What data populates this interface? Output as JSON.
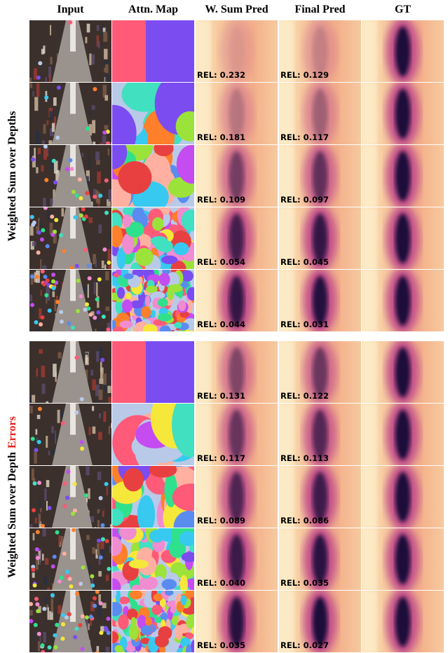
{
  "columns": [
    "Input",
    "Attn. Map",
    "W. Sum Pred",
    "Final Pred",
    "GT"
  ],
  "groups": [
    {
      "label": "Weighted Sum over Depths",
      "rows": [
        {
          "wsum": "REL: 0.232",
          "final": "REL: 0.129"
        },
        {
          "wsum": "REL: 0.181",
          "final": "REL: 0.117"
        },
        {
          "wsum": "REL: 0.109",
          "final": "REL: 0.097"
        },
        {
          "wsum": "REL: 0.054",
          "final": "REL: 0.045"
        },
        {
          "wsum": "REL: 0.044",
          "final": "REL: 0.031"
        }
      ]
    },
    {
      "label": "Weighted Sum over Depth",
      "highlight": "Errors",
      "rows": [
        {
          "wsum": "REL: 0.131",
          "final": "REL: 0.122"
        },
        {
          "wsum": "REL: 0.117",
          "final": "REL: 0.113"
        },
        {
          "wsum": "REL: 0.089",
          "final": "REL: 0.086"
        },
        {
          "wsum": "REL: 0.040",
          "final": "REL: 0.035"
        },
        {
          "wsum": "REL: 0.035",
          "final": "REL: 0.027"
        }
      ]
    }
  ]
}
